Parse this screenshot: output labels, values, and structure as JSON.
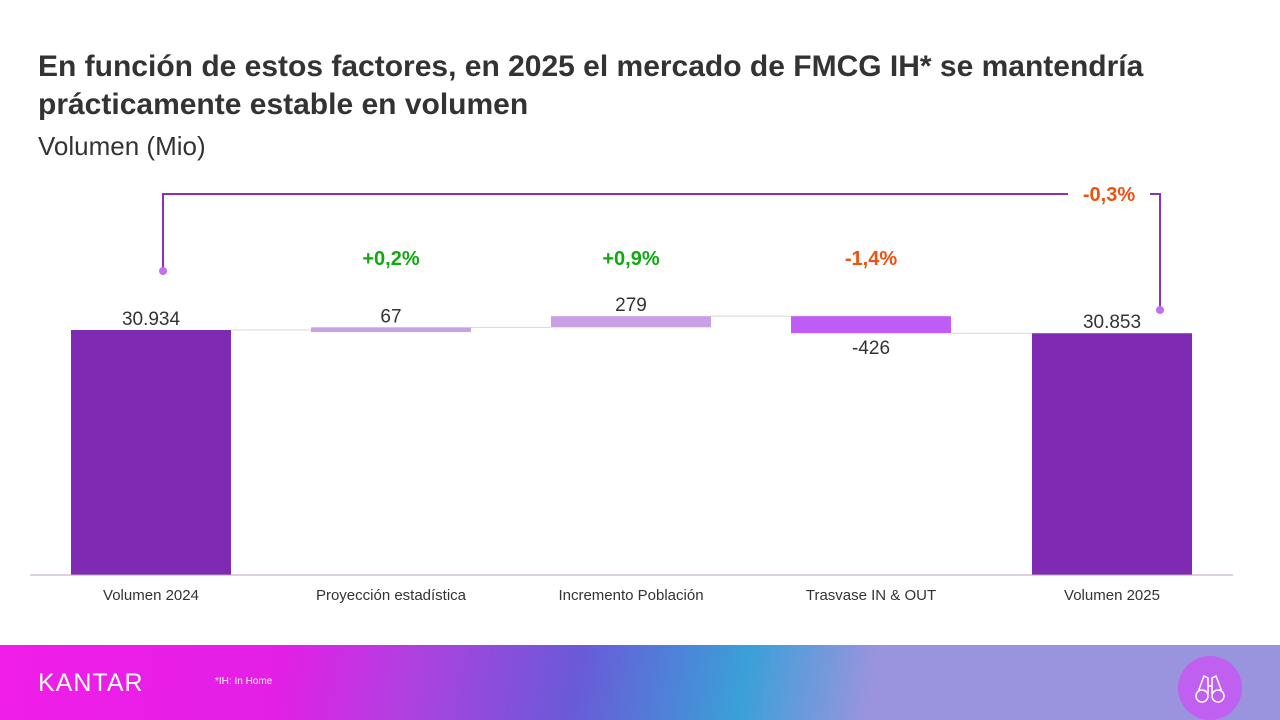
{
  "title": "En función de estos factores, en 2025 el mercado de FMCG IH* se mantendría prácticamente estable en volumen",
  "subtitle": "Volumen (Mio)",
  "footnote": "*IH: In Home",
  "logo": "KANTAR",
  "colors": {
    "total": "#7f2ab3",
    "positive_light": "#c9a0e6",
    "negative": "#bf5cf5",
    "pct_positive": "#10aa10",
    "pct_negative": "#f05010",
    "bracket": "#8a30c0"
  },
  "chart_data": {
    "type": "waterfall",
    "categories": [
      "Volumen 2024",
      "Proyección estadística",
      "Incremento Población",
      "Trasvase IN & OUT",
      "Volumen 2025"
    ],
    "values": [
      30934,
      67,
      279,
      -426,
      30853
    ],
    "kinds": [
      "total",
      "delta",
      "delta",
      "delta",
      "total"
    ],
    "value_labels": [
      "30.934",
      "67",
      "279",
      "-426",
      "30.853"
    ],
    "pct_labels": [
      "",
      "+0,2%",
      "+0,9%",
      "-1,4%",
      ""
    ],
    "total_change_label": "-0,3%",
    "axis_truncated": true
  }
}
